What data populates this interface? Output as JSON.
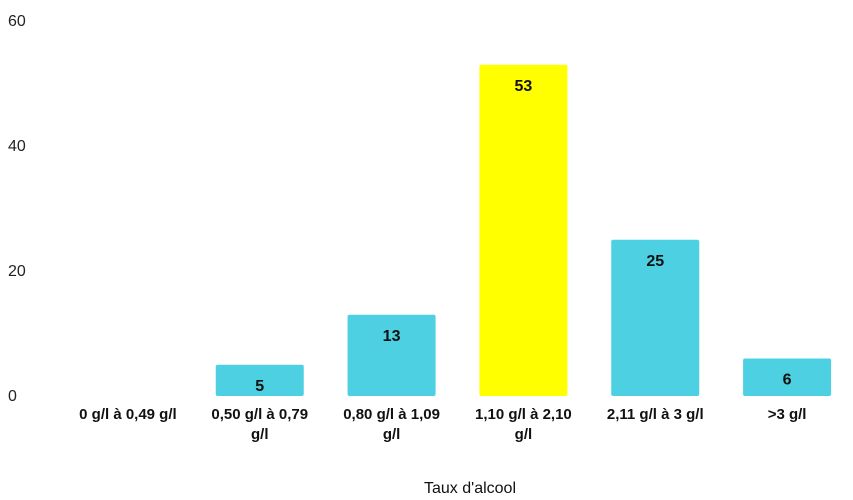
{
  "chart_data": {
    "type": "bar",
    "categories": [
      [
        "0 g/l à 0,49 g/l"
      ],
      [
        "0,50 g/l à 0,79",
        "g/l"
      ],
      [
        "0,80 g/l à 1,09",
        "g/l"
      ],
      [
        "1,10 g/l à 2,10",
        "g/l"
      ],
      [
        "2,11 g/l à 3 g/l"
      ],
      [
        ">3 g/l"
      ]
    ],
    "values": [
      0,
      5,
      13,
      53,
      25,
      6
    ],
    "data_labels": [
      "",
      "5",
      "13",
      "53",
      "25",
      "6"
    ],
    "colors": [
      "#4dd0e1",
      "#4dd0e1",
      "#4dd0e1",
      "#ffff00",
      "#4dd0e1",
      "#4dd0e1"
    ],
    "xlabel": "Taux d'alcool",
    "ylabel": "",
    "ylim": [
      0,
      60
    ],
    "yticks": [
      "0",
      "20",
      "40",
      "60"
    ],
    "grid": false,
    "legend": "none"
  }
}
